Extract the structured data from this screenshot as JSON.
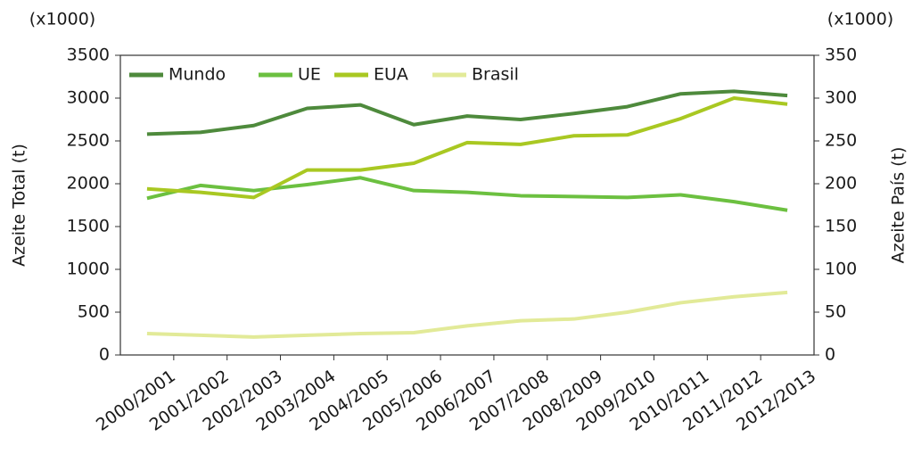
{
  "chart_data": {
    "type": "line",
    "ylabel": "Azeite Total (t)",
    "y2label": "Azeite País (t)",
    "ylabel_unit": "(x1000)",
    "y2label_unit": "(x1000)",
    "categories": [
      "2000/2001",
      "2001/2002",
      "2002/2003",
      "2003/2004",
      "2004/2005",
      "2005/2006",
      "2006/2007",
      "2007/2008",
      "2008/2009",
      "2009/2010",
      "2010/2011",
      "2011/2012",
      "2012/2013"
    ],
    "series": [
      {
        "name": "Mundo",
        "color": "#4e8a3c",
        "values": [
          2580,
          2600,
          2680,
          2880,
          2920,
          2690,
          2790,
          2750,
          2820,
          2900,
          3050,
          3080,
          3030
        ]
      },
      {
        "name": "UE",
        "color": "#6cc040",
        "values": [
          1830,
          1980,
          1920,
          1990,
          2070,
          1920,
          1900,
          1860,
          1850,
          1840,
          1870,
          1790,
          1690
        ]
      },
      {
        "name": "EUA",
        "color": "#a9c822",
        "axis": "y2",
        "values": [
          194,
          190,
          184,
          216,
          216,
          224,
          248,
          246,
          256,
          257,
          276,
          300,
          293
        ]
      },
      {
        "name": "Brasil",
        "color": "#e2ea98",
        "axis": "y2",
        "values": [
          25,
          23,
          21,
          23,
          25,
          26,
          34,
          40,
          42,
          50,
          61,
          68,
          73
        ]
      }
    ],
    "ylim": [
      0,
      3500
    ],
    "yticks": [
      0,
      500,
      1000,
      1500,
      2000,
      2500,
      3000,
      3500
    ],
    "y2lim": [
      0,
      350
    ],
    "y2ticks": [
      0,
      50,
      100,
      150,
      200,
      250,
      300,
      350
    ],
    "legend": "top-left"
  }
}
